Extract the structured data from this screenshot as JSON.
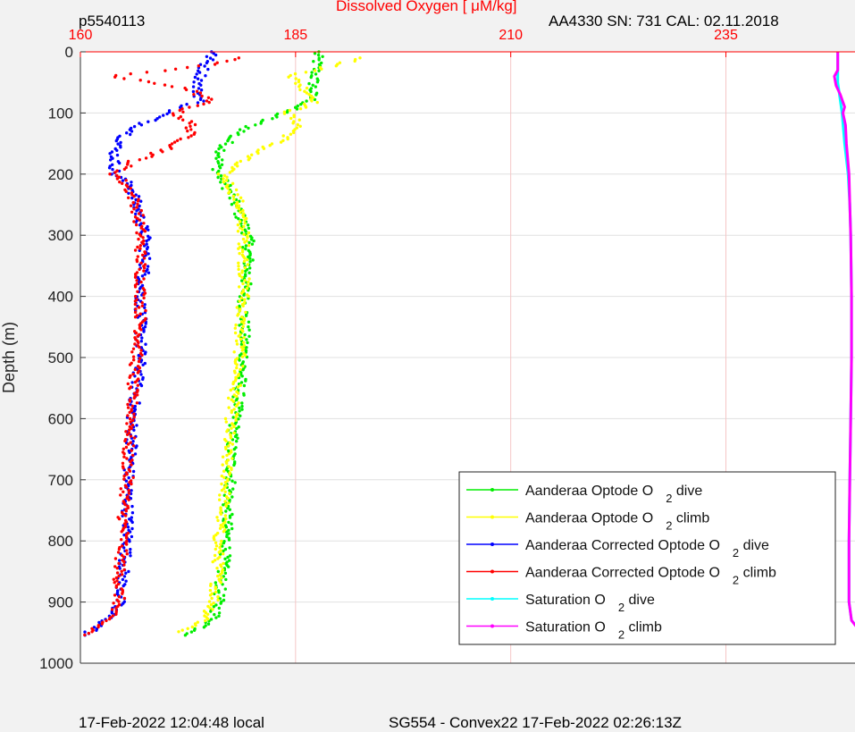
{
  "header": {
    "profile_id": "p5540113",
    "sensor_info": "AA4330   SN: 731  CAL: 02.11.2018"
  },
  "footer": {
    "local_time": "17-Feb-2022 12:04:48 local",
    "mission": "SG554 - Convex22 17-Feb-2022 02:26:13Z"
  },
  "colors": {
    "plot_bg": "#ffffff",
    "page_bg": "#f2f2f2",
    "axis_red": "#ff0000",
    "grid": "#e0e0e0",
    "top_grid": "#f5c6c6"
  },
  "chart_data": {
    "type": "scatter",
    "title": "Dissolved Oxygen [  μM/kg]",
    "xlabel": "Dissolved Oxygen [  μM/kg]",
    "ylabel": "Depth (m)",
    "xlim": [
      160,
      250
    ],
    "ylim": [
      0,
      1000
    ],
    "y_reversed": true,
    "x_ticks": [
      160,
      185,
      210,
      235
    ],
    "y_ticks": [
      0,
      100,
      200,
      300,
      400,
      500,
      600,
      700,
      800,
      900,
      1000
    ],
    "grid": true,
    "legend_position": "bottom-right",
    "series": [
      {
        "name": "Aanderaa Optode O",
        "sub": "2",
        "suffix": " dive",
        "color": "#00ee00",
        "style": "points",
        "y": [
          0,
          20,
          40,
          60,
          80,
          100,
          120,
          140,
          160,
          180,
          200,
          220,
          250,
          300,
          350,
          400,
          450,
          500,
          550,
          600,
          650,
          700,
          750,
          800,
          850,
          900,
          930,
          955
        ],
        "x": [
          187.5,
          187.5,
          187.2,
          187.0,
          186.8,
          183.5,
          180.0,
          177.5,
          176.5,
          176.0,
          176.0,
          177.0,
          178.0,
          179.5,
          179.5,
          179.0,
          179.0,
          179.0,
          178.5,
          178.0,
          177.5,
          177.5,
          177.0,
          177.0,
          176.5,
          176.0,
          175.5,
          172.5
        ]
      },
      {
        "name": "Aanderaa Optode O",
        "sub": "2",
        "suffix": " climb",
        "color": "#ffff00",
        "style": "points",
        "y": [
          10,
          20,
          40,
          60,
          80,
          100,
          120,
          140,
          160,
          180,
          200,
          220,
          250,
          300,
          350,
          400,
          450,
          500,
          550,
          600,
          650,
          700,
          750,
          800,
          850,
          900,
          930,
          950
        ],
        "x": [
          193.0,
          190.0,
          184.5,
          186.0,
          187.5,
          184.0,
          185.5,
          184.0,
          181.0,
          178.5,
          176.5,
          177.5,
          178.5,
          179.0,
          179.0,
          179.0,
          178.5,
          178.5,
          178.0,
          177.5,
          177.0,
          177.0,
          176.5,
          176.0,
          176.0,
          175.5,
          174.5,
          171.5
        ]
      },
      {
        "name": "Aanderaa Corrected Optode O",
        "sub": "2",
        "suffix": " dive",
        "color": "#0000ff",
        "style": "points",
        "y": [
          0,
          20,
          40,
          60,
          80,
          100,
          120,
          140,
          160,
          180,
          200,
          220,
          250,
          300,
          350,
          400,
          450,
          500,
          550,
          600,
          650,
          700,
          750,
          800,
          850,
          900,
          930,
          955
        ],
        "x": [
          175.5,
          174.5,
          174.0,
          173.5,
          174.0,
          170.0,
          167.0,
          165.0,
          164.0,
          164.0,
          164.0,
          166.0,
          166.5,
          167.5,
          167.5,
          167.0,
          167.0,
          167.0,
          166.5,
          166.0,
          166.0,
          165.5,
          165.5,
          165.5,
          165.0,
          164.5,
          163.0,
          160.5
        ]
      },
      {
        "name": "Aanderaa Corrected Optode O",
        "sub": "2",
        "suffix": " climb",
        "color": "#ff0000",
        "style": "points",
        "y": [
          10,
          20,
          40,
          60,
          80,
          100,
          120,
          140,
          160,
          180,
          200,
          220,
          250,
          300,
          350,
          400,
          450,
          500,
          550,
          600,
          650,
          700,
          750,
          800,
          850,
          900,
          930,
          955
        ],
        "x": [
          178.0,
          176.0,
          163.5,
          172.5,
          175.0,
          171.0,
          173.0,
          172.5,
          170.0,
          166.0,
          164.0,
          165.5,
          166.5,
          167.0,
          167.0,
          167.0,
          167.0,
          166.5,
          166.0,
          166.0,
          165.5,
          165.5,
          165.0,
          165.0,
          164.5,
          164.5,
          163.0,
          160.5
        ]
      },
      {
        "name": "Saturation O",
        "sub": "2",
        "suffix": " dive",
        "color": "#00ffff",
        "style": "line",
        "y": [
          0,
          30,
          50,
          100,
          150,
          200,
          250,
          300,
          400,
          500,
          600,
          700,
          800,
          900,
          930,
          950
        ],
        "x": [
          248.0,
          248.0,
          248.0,
          248.5,
          248.8,
          249.2,
          249.4,
          249.5,
          249.6,
          249.6,
          249.5,
          249.4,
          249.3,
          249.3,
          249.6,
          250.8
        ]
      },
      {
        "name": "Saturation O",
        "sub": "2",
        "suffix": " climb",
        "color": "#ff00ff",
        "style": "line",
        "y": [
          0,
          30,
          40,
          55,
          70,
          90,
          100,
          120,
          150,
          200,
          250,
          300,
          400,
          500,
          600,
          700,
          800,
          900,
          930,
          950
        ],
        "x": [
          248.0,
          248.0,
          247.6,
          247.8,
          248.3,
          248.8,
          248.6,
          248.9,
          249.0,
          249.3,
          249.4,
          249.5,
          249.6,
          249.6,
          249.5,
          249.4,
          249.3,
          249.3,
          249.6,
          250.7
        ]
      }
    ]
  }
}
